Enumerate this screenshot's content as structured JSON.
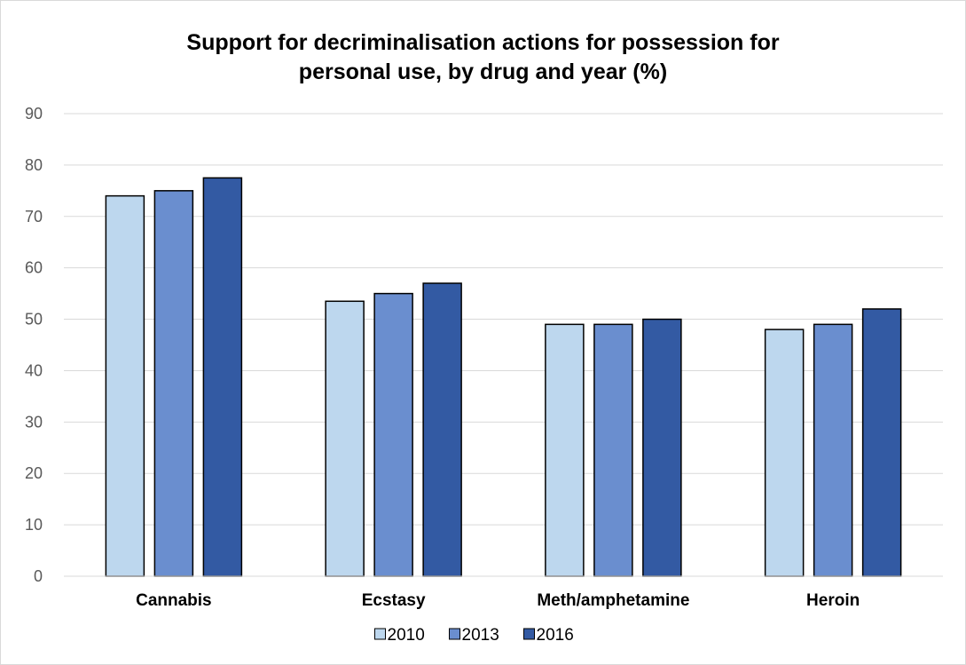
{
  "chart_data": {
    "type": "bar",
    "title": "Support for decriminalisation actions for possession for personal use, by drug and year (%)",
    "title_lines": [
      "Support for decriminalisation actions for possession for",
      "personal use, by drug and year (%)"
    ],
    "categories": [
      "Cannabis",
      "Ecstasy",
      "Meth/amphetamine",
      "Heroin"
    ],
    "series": [
      {
        "name": "2010",
        "values": [
          74,
          53.5,
          49,
          48
        ],
        "color": "#bdd7ee"
      },
      {
        "name": "2013",
        "values": [
          75,
          55,
          49,
          49
        ],
        "color": "#6a8ecf"
      },
      {
        "name": "2016",
        "values": [
          77.5,
          57,
          50,
          52
        ],
        "color": "#335aa3"
      }
    ],
    "xlabel": "",
    "ylabel": "",
    "ylim": [
      0,
      90
    ],
    "yticks": [
      0,
      10,
      20,
      30,
      40,
      50,
      60,
      70,
      80,
      90
    ],
    "grid": true,
    "legend_position": "bottom",
    "bar_outline_color": "#000000",
    "grid_color": "#d9d9d9"
  }
}
